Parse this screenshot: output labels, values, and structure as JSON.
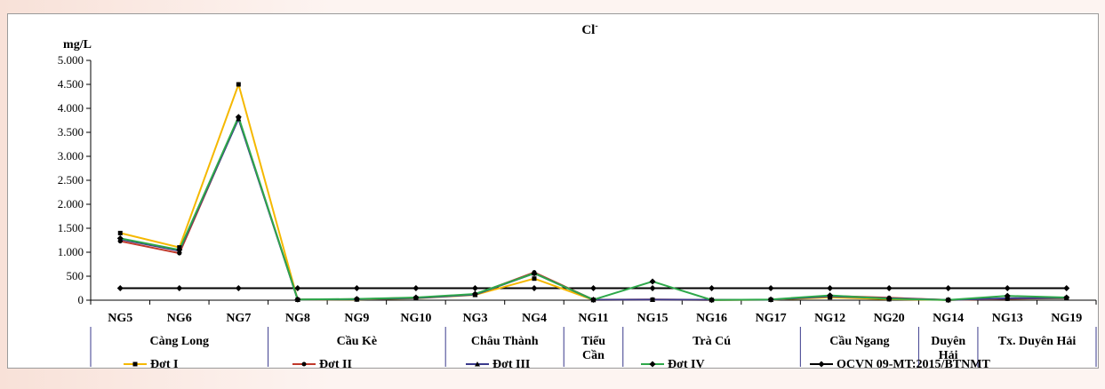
{
  "chart_data": {
    "type": "line",
    "title": "Cl",
    "title_superscript": "-",
    "ylabel": "mg/L",
    "ylim": [
      0,
      5000
    ],
    "yticks": [
      0,
      500,
      1000,
      1500,
      2000,
      2500,
      3000,
      3500,
      4000,
      4500,
      5000
    ],
    "ytick_labels": [
      "0",
      "500",
      "1.000",
      "1.500",
      "2.000",
      "2.500",
      "3.000",
      "3.500",
      "4.000",
      "4.500",
      "5.000"
    ],
    "categories": [
      "NG5",
      "NG6",
      "NG7",
      "NG8",
      "NG9",
      "NG10",
      "NG3",
      "NG4",
      "NG11",
      "NG15",
      "NG16",
      "NG17",
      "NG12",
      "NG20",
      "NG14",
      "NG13",
      "NG19"
    ],
    "groups": [
      {
        "name": "Càng Long",
        "lines": [
          "Càng Long"
        ],
        "count": 3
      },
      {
        "name": "Cầu Kè",
        "lines": [
          "Cầu Kè"
        ],
        "count": 3
      },
      {
        "name": "Châu Thành",
        "lines": [
          "Châu Thành"
        ],
        "count": 2
      },
      {
        "name": "Tiểu Cần",
        "lines": [
          "Tiểu",
          "Cần"
        ],
        "count": 1
      },
      {
        "name": "Trà Cú",
        "lines": [
          "Trà Cú"
        ],
        "count": 3
      },
      {
        "name": "Cầu Ngang",
        "lines": [
          "Cầu Ngang"
        ],
        "count": 2
      },
      {
        "name": "Duyên Hải",
        "lines": [
          "Duyên",
          "Hải"
        ],
        "count": 1
      },
      {
        "name": "Tx. Duyên Hải",
        "lines": [
          "Tx. Duyên Hải"
        ],
        "count": 2
      }
    ],
    "series": [
      {
        "name": "Đợt I",
        "color": "#f5b800",
        "marker": "square",
        "values": [
          1400,
          1100,
          4500,
          10,
          15,
          40,
          110,
          450,
          5,
          10,
          5,
          10,
          60,
          20,
          5,
          30,
          40
        ]
      },
      {
        "name": "Đợt II",
        "color": "#c0392b",
        "marker": "circle",
        "values": [
          1230,
          980,
          3800,
          15,
          20,
          50,
          120,
          580,
          10,
          15,
          8,
          10,
          90,
          50,
          5,
          30,
          50
        ]
      },
      {
        "name": "Đợt III",
        "color": "#3a3a8c",
        "marker": "triangle",
        "values": [
          1270,
          1030,
          3780,
          12,
          18,
          45,
          115,
          560,
          8,
          12,
          6,
          10,
          80,
          40,
          5,
          40,
          45
        ]
      },
      {
        "name": "Đợt IV",
        "color": "#2ea84a",
        "marker": "diamond",
        "values": [
          1290,
          1050,
          3820,
          15,
          25,
          55,
          130,
          560,
          10,
          390,
          5,
          15,
          100,
          30,
          5,
          90,
          55
        ]
      },
      {
        "name": "QCVN 09-MT:2015/BTNMT",
        "color": "#000000",
        "marker": "diamond",
        "values": [
          250,
          250,
          250,
          250,
          250,
          250,
          250,
          250,
          250,
          250,
          250,
          250,
          250,
          250,
          250,
          250,
          250
        ]
      }
    ],
    "grid": false,
    "legend_position": "bottom"
  }
}
